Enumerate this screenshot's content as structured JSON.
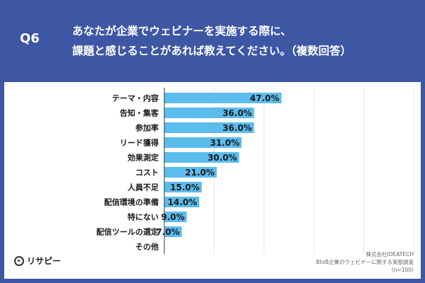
{
  "header": {
    "q_label": "Q6",
    "question_line1": "あなたが企業でウェビナーを実施する際に、",
    "question_line2": "課題と感じることがあれば教えてください。（複数回答）"
  },
  "brand": {
    "logo_text": "リサピー"
  },
  "source": {
    "line1": "株式会社IDEATECH",
    "line2": "BtoB企業のウェビナーに関する実態調査",
    "line3": "(n=100)"
  },
  "colors": {
    "background": "#3e57a5",
    "bar": "#5bbcee",
    "panel": "#ffffff",
    "axis": "#333333"
  },
  "chart_data": {
    "type": "bar",
    "orientation": "horizontal",
    "categories": [
      "テーマ・内容",
      "告知・集客",
      "参加率",
      "リード獲得",
      "効果測定",
      "コスト",
      "人員不足",
      "配信環境の準備",
      "特にない",
      "配信ツールの選定",
      "その他"
    ],
    "values": [
      47.0,
      36.0,
      36.0,
      31.0,
      30.0,
      21.0,
      15.0,
      14.0,
      9.0,
      7.0,
      0
    ],
    "value_labels": [
      "47.0%",
      "36.0%",
      "36.0%",
      "31.0%",
      "30.0%",
      "21.0%",
      "15.0%",
      "14.0%",
      "9.0%",
      "7.0%",
      ""
    ],
    "unit": "%",
    "xlim": [
      0,
      100
    ],
    "grid": true,
    "legend": "none"
  }
}
